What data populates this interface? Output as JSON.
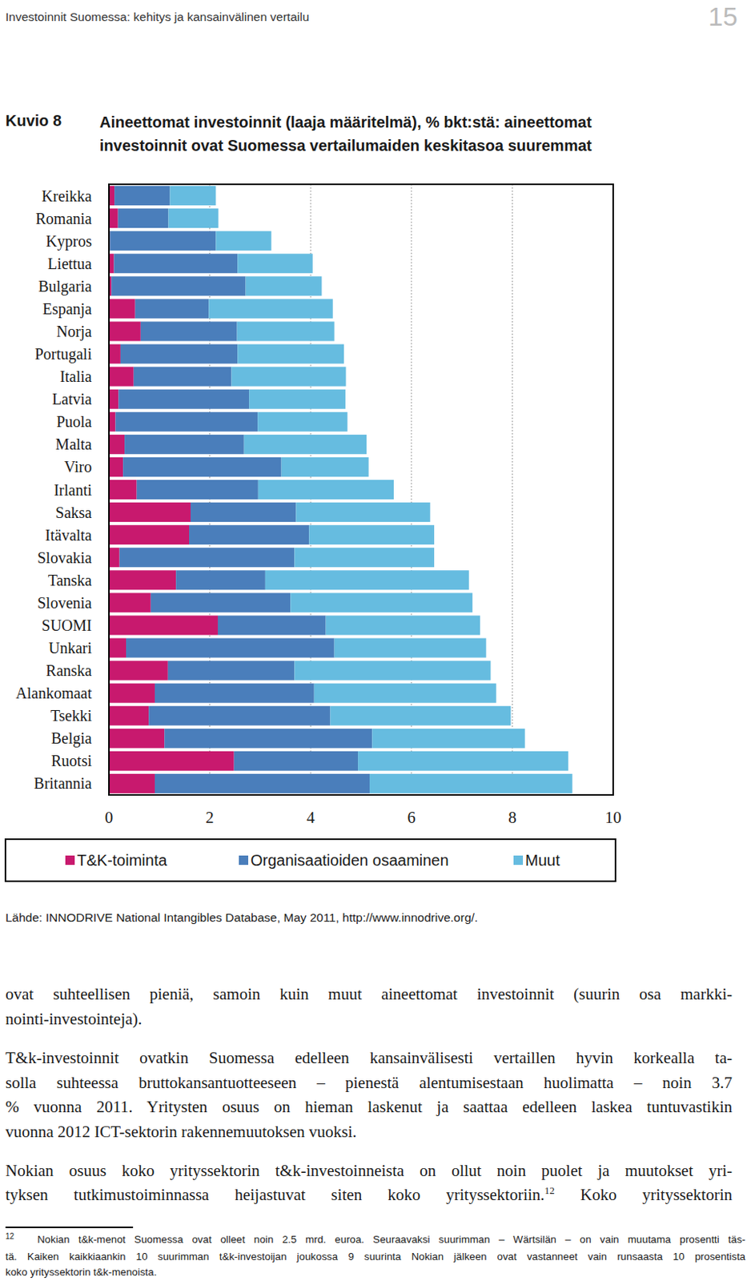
{
  "page": {
    "header": "Investoinnit Suomessa: kehitys ja kansainvälinen vertailu",
    "page_number": "15",
    "figure_label": "Kuvio 8",
    "source": "Lähde: INNODRIVE National Intangibles Database, May 2011, http://www.innodrive.org/.",
    "body": [
      {
        "lines": [
          "ovat suhteellisen pieniä, samoin kuin muut aineettomat investoinnit (suurin osa markki-",
          "nointi-investointeja)."
        ]
      },
      {
        "lines": [
          "T&k-investoinnit ovatkin Suomessa edelleen kansainvälisesti vertaillen hyvin korkealla ta-",
          "solla suhteessa bruttokansantuotteeseen – pienestä alentumisestaan huolimatta – noin 3.7",
          "% vuonna 2011. Yritysten osuus on hieman laskenut ja saattaa edelleen laskea tuntuvastikin",
          "vuonna 2012 ICT-sektorin rakennemuutoksen vuoksi."
        ]
      },
      {
        "lines": [
          "Nokian osuus koko yrityssektorin t&k-investoinneista on ollut noin puolet ja muutokset yri-",
          {
            "before": "tyksen tutkimustoiminnassa heijastuvat siten koko yrityssektoriin.",
            "sup": "12",
            "after": " Koko yrityssektorin"
          }
        ]
      }
    ],
    "footnote": {
      "number": "12",
      "lines": [
        "Nokian t&k-menot Suomessa ovat olleet noin 2.5 mrd. euroa. Seuraavaksi suurimman – Wärtsilän – on vain muutama prosentti täs-",
        "tä. Kaiken kaikkiaankin 10 suurimman t&k-investoijan joukossa 9 suurinta Nokian jälkeen ovat vastanneet vain runsaasta 10 prosentista",
        "koko yrityssektorin t&k-menoista."
      ]
    }
  },
  "chart_data": {
    "type": "bar",
    "title": "Aineettomat investoinnit (laaja määritelmä), % bkt:stä: aineettomat investoinnit ovat Suomessa vertailumaiden keskitasoa suuremmat",
    "orientation": "horizontal",
    "stacked": true,
    "grid": true,
    "legend": "bottom",
    "categories": [
      "Kreikka",
      "Romania",
      "Kypros",
      "Liettua",
      "Bulgaria",
      "Espanja",
      "Norja",
      "Portugali",
      "Italia",
      "Latvia",
      "Puola",
      "Malta",
      "Viro",
      "Irlanti",
      "Saksa",
      "Itävalta",
      "Slovakia",
      "Tanska",
      "Slovenia",
      "SUOMI",
      "Unkari",
      "Ranska",
      "Alankomaat",
      "Tsekki",
      "Belgia",
      "Ruotsi",
      "Britannia"
    ],
    "series": [
      {
        "name": "T&K-toiminta",
        "color": "#c8196e",
        "values": [
          0.11,
          0.18,
          0.02,
          0.1,
          0.05,
          0.52,
          0.63,
          0.23,
          0.49,
          0.19,
          0.13,
          0.31,
          0.28,
          0.55,
          1.62,
          1.59,
          0.21,
          1.33,
          0.83,
          2.16,
          0.34,
          1.17,
          0.91,
          0.79,
          1.1,
          2.48,
          0.91
        ]
      },
      {
        "name": "Organisaatioiden osaaminen",
        "color": "#4a7ebb",
        "values": [
          1.1,
          1.0,
          2.1,
          2.45,
          2.66,
          1.46,
          1.91,
          2.32,
          1.94,
          2.59,
          2.82,
          2.37,
          3.14,
          2.41,
          2.09,
          2.38,
          3.47,
          1.77,
          2.77,
          2.14,
          4.13,
          2.51,
          3.16,
          3.6,
          4.12,
          2.46,
          4.26
        ]
      },
      {
        "name": "Muut",
        "color": "#66bce0",
        "values": [
          0.91,
          0.99,
          1.1,
          1.49,
          1.51,
          2.46,
          1.93,
          2.11,
          2.27,
          1.91,
          1.78,
          2.43,
          1.73,
          2.69,
          2.66,
          2.48,
          2.77,
          4.04,
          3.61,
          3.06,
          3.01,
          3.89,
          3.61,
          3.58,
          3.03,
          4.17,
          4.02
        ]
      }
    ],
    "xlim": [
      0,
      10
    ],
    "xticks": [
      0,
      2,
      4,
      6,
      8,
      10
    ]
  }
}
